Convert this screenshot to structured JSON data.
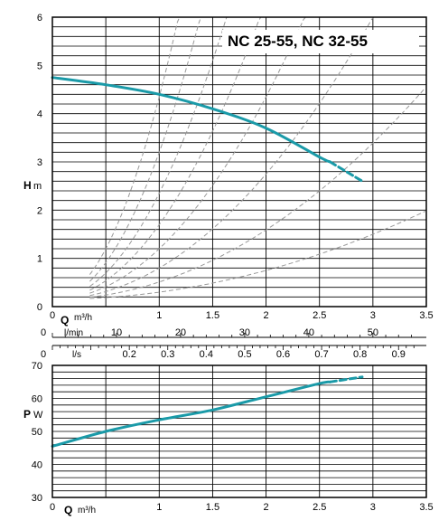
{
  "title": "NC 25-55,  NC 32-55",
  "colors": {
    "curve": "#1a9aa8",
    "grid": "#000000",
    "system": "#999999"
  },
  "chart_data": [
    {
      "type": "line",
      "title": "NC 25-55,  NC 32-55",
      "ylabel": {
        "symbol": "H",
        "unit": "m"
      },
      "xlabel": {
        "symbol": "Q",
        "unit": "m³/h"
      },
      "xlim": [
        0,
        3.5
      ],
      "ylim": [
        0,
        6
      ],
      "x_ticks": [
        "0",
        "1",
        "1.5",
        "2",
        "2.5",
        "3",
        "3.5"
      ],
      "x_tick_values": [
        0,
        1,
        1.5,
        2,
        2.5,
        3,
        3.5
      ],
      "y_ticks": [
        "0",
        "1",
        "2",
        "3",
        "4",
        "5",
        "6"
      ],
      "y_tick_values": [
        0,
        1,
        2,
        3,
        4,
        5,
        6
      ],
      "grid": true,
      "secondary_axes": [
        {
          "unit": "l/min",
          "ticks": [
            "0",
            "10",
            "20",
            "30",
            "40",
            "50"
          ],
          "tick_values": [
            0,
            10,
            20,
            30,
            40,
            50
          ]
        },
        {
          "unit": "l/s",
          "ticks": [
            "0",
            "0.2",
            "0.3",
            "0.4",
            "0.5",
            "0.6",
            "0.7",
            "0.8",
            "0.9"
          ],
          "tick_values": [
            0,
            0.2,
            0.3,
            0.4,
            0.5,
            0.6,
            0.7,
            0.8,
            0.9
          ],
          "minor_values": [
            0.1
          ]
        }
      ],
      "series": [
        {
          "x": [
            0,
            0.5,
            1.0,
            1.5,
            2.0,
            2.5,
            2.6
          ],
          "y": [
            4.75,
            4.6,
            4.4,
            4.1,
            3.7,
            3.1,
            3.0
          ]
        },
        {
          "style": "dashed",
          "x": [
            2.6,
            2.9
          ],
          "y": [
            3.0,
            2.6
          ]
        }
      ],
      "system_curves_k": [
        0.15,
        0.36,
        0.65,
        1.05,
        1.55,
        2.2,
        3.05,
        4.2
      ]
    },
    {
      "type": "line",
      "ylabel": {
        "symbol": "P",
        "unit": "W"
      },
      "xlabel": {
        "symbol": "Q",
        "unit": "m³/h"
      },
      "xlim": [
        0,
        3.5
      ],
      "ylim": [
        30,
        70
      ],
      "x_ticks": [
        "0",
        "1",
        "1.5",
        "2",
        "2.5",
        "3",
        "3.5"
      ],
      "x_tick_values": [
        0,
        1,
        1.5,
        2,
        2.5,
        3,
        3.5
      ],
      "y_ticks": [
        "30",
        "40",
        "50",
        "60",
        "70"
      ],
      "y_tick_values": [
        30,
        40,
        50,
        60,
        70
      ],
      "grid": true,
      "series": [
        {
          "x": [
            0,
            0.5,
            1.0,
            1.5,
            2.0,
            2.5,
            2.6
          ],
          "y": [
            45.5,
            50,
            53.5,
            56.5,
            60.5,
            64.5,
            65
          ]
        },
        {
          "style": "dashed",
          "x": [
            2.6,
            2.9
          ],
          "y": [
            65,
            66.5
          ]
        }
      ]
    }
  ]
}
